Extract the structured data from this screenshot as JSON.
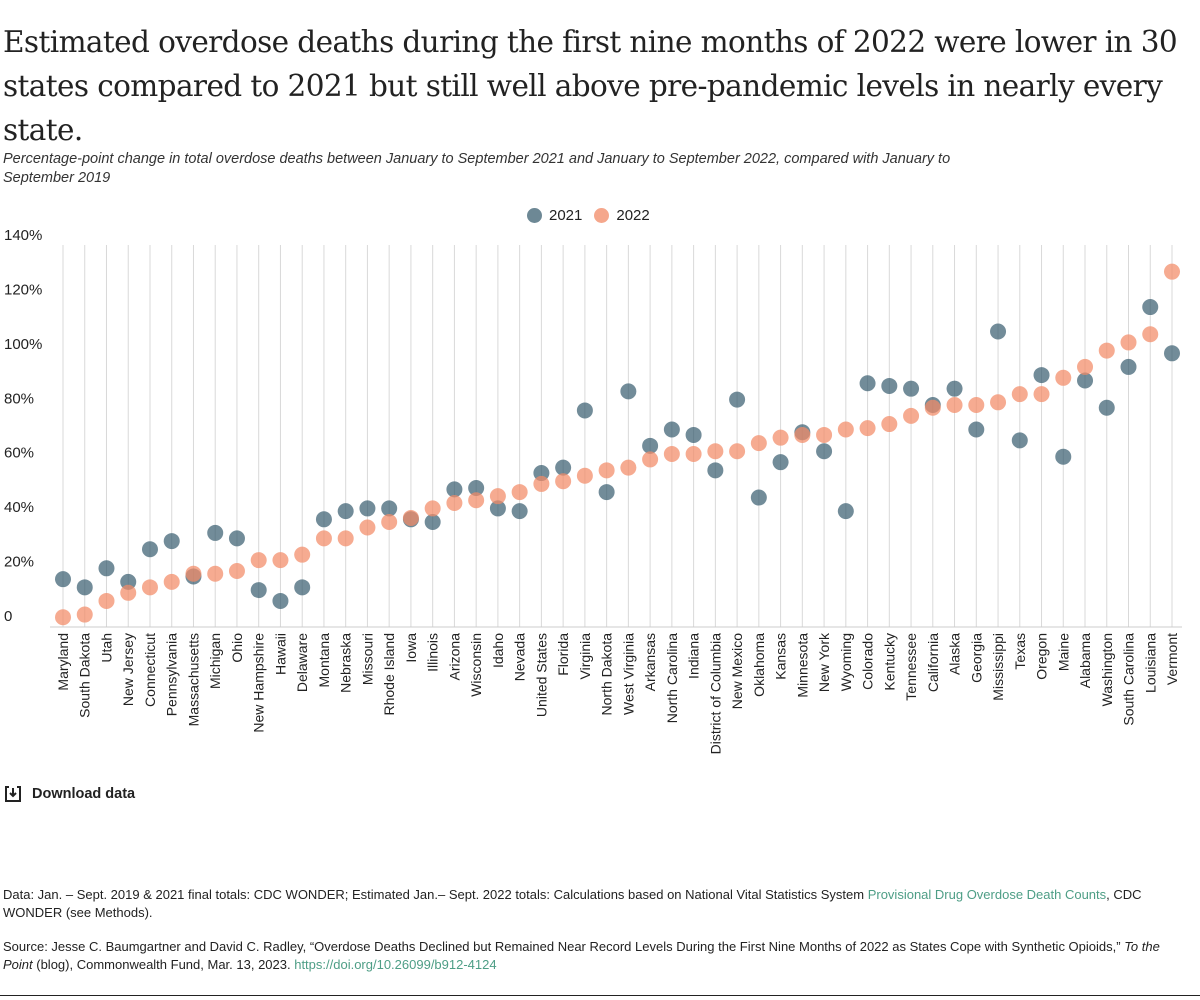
{
  "title": "Estimated overdose deaths during the first nine months of 2022 were lower in 30 states compared to 2021 but still well above pre-pandemic levels in nearly every state.",
  "subtitle": "Percentage-point change in total overdose deaths between January to September 2021 and January to September 2022, compared with January to September 2019",
  "download_label": "Download data",
  "download_icon": "download-icon",
  "notes": {
    "data_prefix": "Data: Jan. – Sept. 2019 & 2021 final totals: CDC WONDER; Estimated Jan.– Sept. 2022 totals: Calculations based on National Vital Statistics System ",
    "data_link": "Provisional Drug Overdose Death Counts",
    "data_suffix": ", CDC WONDER (see Methods).",
    "source_prefix": "Source: Jesse C. Baumgartner and David C. Radley, “Overdose Deaths Declined but Remained Near Record Levels During the First Nine Months of 2022 as States Cope with Synthetic Opioids,” ",
    "source_italic": "To the Point",
    "source_middle": " (blog), Commonwealth Fund, Mar. 13, 2023. ",
    "source_link": "https://doi.org/10.26099/b912-4124"
  },
  "colors": {
    "2021": "#2f5668",
    "2022": "#f28a66",
    "link": "#4e9e86",
    "grid": "#d9d9d9"
  },
  "chart_data": {
    "type": "scatter",
    "ylim": [
      0,
      140
    ],
    "yticks": [
      0,
      20,
      40,
      60,
      80,
      100,
      120,
      140
    ],
    "ytick_labels": [
      "0",
      "20%",
      "40%",
      "60%",
      "80%",
      "100%",
      "120%",
      "140%"
    ],
    "grid": "vertical",
    "legend": "top-center",
    "categories": [
      "Maryland",
      "South Dakota",
      "Utah",
      "New Jersey",
      "Connecticut",
      "Pennsylvania",
      "Massachusetts",
      "Michigan",
      "Ohio",
      "New Hampshire",
      "Hawaii",
      "Delaware",
      "Montana",
      "Nebraska",
      "Missouri",
      "Rhode Island",
      "Iowa",
      "Illinois",
      "Arizona",
      "Wisconsin",
      "Idaho",
      "Nevada",
      "United States",
      "Florida",
      "Virginia",
      "North Dakota",
      "West Virginia",
      "Arkansas",
      "North Carolina",
      "Indiana",
      "District of Columbia",
      "New Mexico",
      "Oklahoma",
      "Kansas",
      "Minnesota",
      "New York",
      "Wyoming",
      "Colorado",
      "Kentucky",
      "Tennessee",
      "California",
      "Alaska",
      "Georgia",
      "Mississippi",
      "Texas",
      "Oregon",
      "Maine",
      "Alabama",
      "Washington",
      "South Carolina",
      "Louisiana",
      "Vermont"
    ],
    "series": [
      {
        "name": "2021",
        "values": [
          15,
          12,
          19,
          14,
          26,
          29,
          16,
          32,
          30,
          11,
          7,
          12,
          37,
          40,
          41,
          41,
          37,
          36,
          48,
          48.5,
          41,
          40,
          54,
          56,
          77,
          47,
          84,
          64,
          70,
          68,
          55,
          81,
          45,
          58,
          69,
          62,
          40,
          87,
          86,
          85,
          79,
          85,
          70,
          106,
          66,
          90,
          60,
          88,
          78,
          93,
          115,
          98
        ]
      },
      {
        "name": "2022",
        "values": [
          1,
          2,
          7,
          10,
          12,
          14,
          17,
          17,
          18,
          22,
          22,
          24,
          30,
          30,
          34,
          36,
          37.5,
          41,
          43,
          44,
          45.5,
          47,
          50,
          51,
          53,
          55,
          56,
          59,
          61,
          61,
          62,
          62,
          65,
          67,
          68,
          68,
          70,
          70.5,
          72,
          75,
          78,
          79,
          79,
          80,
          83,
          83,
          89,
          93,
          99,
          102,
          105,
          128
        ]
      }
    ]
  }
}
